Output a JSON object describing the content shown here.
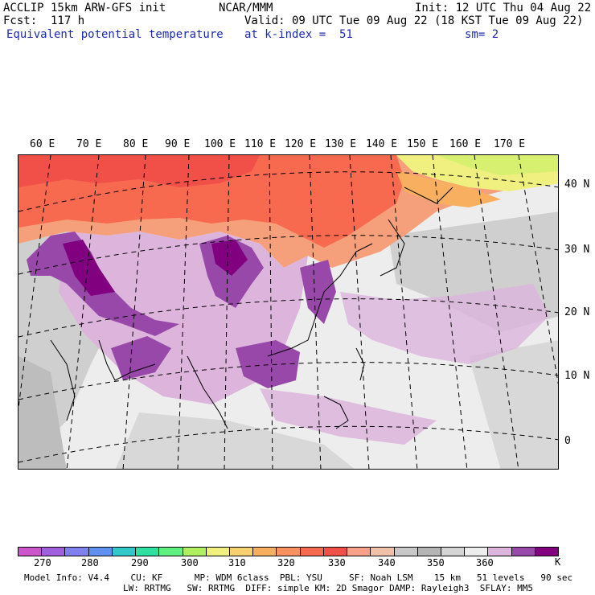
{
  "header": {
    "model": "ACCLIP 15km ARW-GFS init",
    "center": "NCAR/MMM",
    "init": "Init: 12 UTC Thu 04 Aug 22",
    "fcst": "Fcst:  117 h",
    "valid": "Valid: 09 UTC Tue 09 Aug 22 (18 KST Tue 09 Aug 22)",
    "field": "Equivalent potential temperature",
    "level": "at k-index =  51",
    "smooth": "sm= 2"
  },
  "lon_labels": [
    "60 E",
    "70 E",
    "80 E",
    "90 E",
    "100 E",
    "110 E",
    "120 E",
    "130 E",
    "140 E",
    "150 E",
    "160 E",
    "170 E"
  ],
  "lat_labels": [
    "40 N",
    "30 N",
    "20 N",
    "10 N",
    "0"
  ],
  "colorbar": {
    "colors": [
      "#cc55cc",
      "#a060dd",
      "#8080ee",
      "#6090f0",
      "#30c8c8",
      "#30e0a0",
      "#60f080",
      "#b0f060",
      "#f0f080",
      "#f8d070",
      "#f8b060",
      "#f89060",
      "#f86a50",
      "#f05048",
      "#f8a088",
      "#f0c0a8",
      "#c8c8c8",
      "#b4b4b4",
      "#d4d4d4",
      "#ededed",
      "#dcb4dc",
      "#9848a8",
      "#800080"
    ],
    "ticks": [
      "270",
      "280",
      "290",
      "300",
      "310",
      "320",
      "330",
      "340",
      "350",
      "360"
    ],
    "unit": "K"
  },
  "footer": {
    "line1": "Model Info: V4.4    CU: KF      MP: WDM 6class  PBL: YSU     SF: Noah LSM    15 km   51 levels   90 sec",
    "line2": "LW: RRTMG   SW: RRTMG  DIFF: simple KM: 2D Smagor DAMP: Rayleigh3  SFLAY: MM5"
  }
}
